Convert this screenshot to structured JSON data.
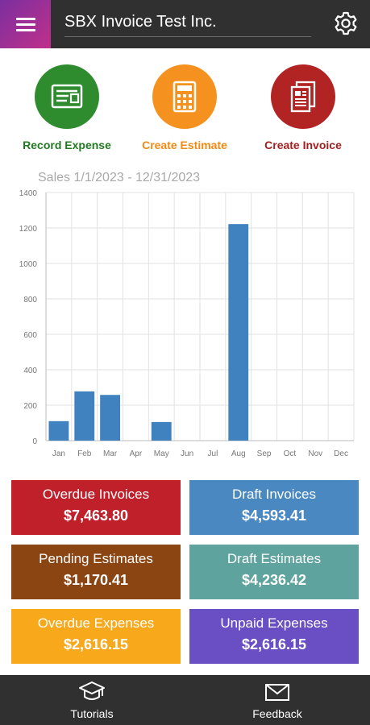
{
  "header": {
    "title": "SBX Invoice Test Inc."
  },
  "actions": [
    {
      "label": "Record Expense",
      "icon": "receipt-icon",
      "color": "#2e8b2e",
      "label_color": "#217a21"
    },
    {
      "label": "Create Estimate",
      "icon": "calculator-icon",
      "color": "#f5911e",
      "label_color": "#f08a12"
    },
    {
      "label": "Create Invoice",
      "icon": "document-icon",
      "color": "#b22424",
      "label_color": "#a31f1f"
    }
  ],
  "chart_title": "Sales 1/1/2023 - 12/31/2023",
  "chart_data": {
    "type": "bar",
    "categories": [
      "Jan",
      "Feb",
      "Mar",
      "Apr",
      "May",
      "Jun",
      "Jul",
      "Aug",
      "Sep",
      "Oct",
      "Nov",
      "Dec"
    ],
    "values": [
      110,
      278,
      258,
      0,
      105,
      0,
      0,
      1222,
      0,
      0,
      0,
      0
    ],
    "yticks": [
      0,
      200,
      400,
      600,
      800,
      1000,
      1200,
      1400
    ],
    "ylim": [
      0,
      1400
    ],
    "grid": true,
    "bar_color": "#3f82bf"
  },
  "tiles": [
    {
      "label": "Overdue Invoices",
      "value": "$7,463.80",
      "color": "#c0202a"
    },
    {
      "label": "Draft Invoices",
      "value": "$4,593.41",
      "color": "#4a88c2"
    },
    {
      "label": "Pending Estimates",
      "value": "$1,170.41",
      "color": "#8b4513"
    },
    {
      "label": "Draft Estimates",
      "value": "$4,236.42",
      "color": "#5fa39e"
    },
    {
      "label": "Overdue Expenses",
      "value": "$2,616.15",
      "color": "#f7a81b"
    },
    {
      "label": "Unpaid Expenses",
      "value": "$2,616.15",
      "color": "#6a4fc4"
    }
  ],
  "bottom_nav": {
    "tutorials": "Tutorials",
    "feedback": "Feedback"
  }
}
